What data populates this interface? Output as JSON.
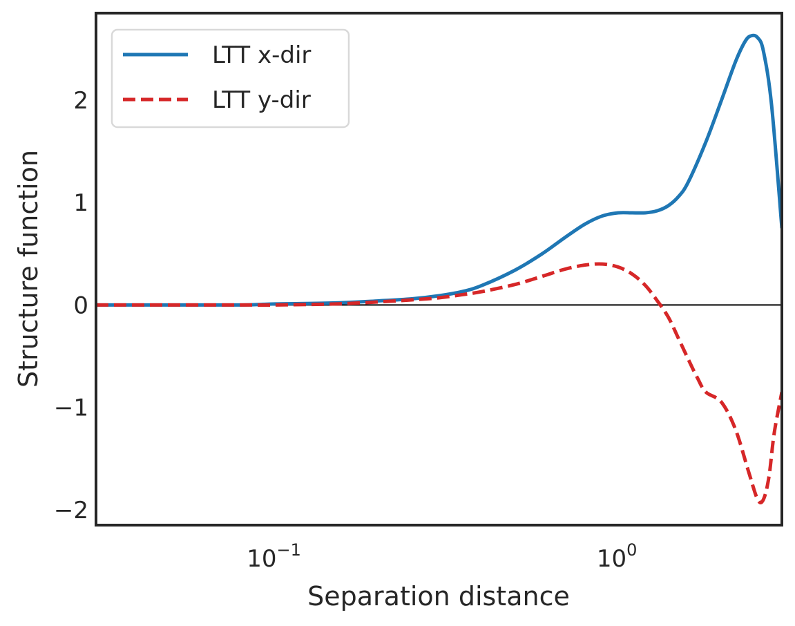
{
  "chart_data": {
    "type": "line",
    "title": "",
    "xlabel": "Separation distance",
    "ylabel": "Structure function",
    "xscale": "log",
    "xlim": [
      0.03,
      3.0
    ],
    "ylim": [
      -2.15,
      2.85
    ],
    "x_ticks": [
      {
        "value": 0.1,
        "base": "10",
        "exp": "−1"
      },
      {
        "value": 1.0,
        "base": "10",
        "exp": "0"
      }
    ],
    "y_ticks": [
      {
        "value": -2,
        "label": "−2"
      },
      {
        "value": -1,
        "label": "−1"
      },
      {
        "value": 0,
        "label": "0"
      },
      {
        "value": 1,
        "label": "1"
      },
      {
        "value": 2,
        "label": "2"
      }
    ],
    "grid": false,
    "legend_position": "top-left",
    "zero_line": true,
    "series": [
      {
        "name": "LTT x-dir",
        "color": "#1f77b4",
        "style": "solid",
        "x": [
          0.03,
          0.05,
          0.08,
          0.1,
          0.15,
          0.2,
          0.25,
          0.3,
          0.35,
          0.4,
          0.5,
          0.6,
          0.7,
          0.8,
          0.9,
          1.0,
          1.1,
          1.2,
          1.3,
          1.4,
          1.5,
          1.6,
          1.8,
          2.0,
          2.2,
          2.35,
          2.45,
          2.55,
          2.65,
          2.8,
          3.0
        ],
        "y": [
          0.0,
          0.0,
          0.0,
          0.01,
          0.02,
          0.04,
          0.06,
          0.09,
          0.13,
          0.19,
          0.34,
          0.5,
          0.66,
          0.79,
          0.87,
          0.9,
          0.9,
          0.9,
          0.92,
          0.97,
          1.06,
          1.2,
          1.59,
          2.0,
          2.38,
          2.58,
          2.63,
          2.61,
          2.48,
          1.95,
          0.75
        ]
      },
      {
        "name": "LTT y-dir",
        "color": "#d62728",
        "style": "dashed",
        "x": [
          0.03,
          0.05,
          0.08,
          0.1,
          0.15,
          0.2,
          0.25,
          0.3,
          0.35,
          0.4,
          0.5,
          0.6,
          0.7,
          0.8,
          0.9,
          1.0,
          1.1,
          1.2,
          1.3,
          1.4,
          1.5,
          1.6,
          1.7,
          1.8,
          2.0,
          2.2,
          2.4,
          2.55,
          2.65,
          2.75,
          2.85,
          3.0
        ],
        "y": [
          0.0,
          0.0,
          0.0,
          0.0,
          0.01,
          0.03,
          0.05,
          0.07,
          0.1,
          0.13,
          0.2,
          0.28,
          0.35,
          0.39,
          0.4,
          0.37,
          0.3,
          0.19,
          0.04,
          -0.12,
          -0.33,
          -0.53,
          -0.71,
          -0.85,
          -0.95,
          -1.22,
          -1.63,
          -1.9,
          -1.9,
          -1.68,
          -1.25,
          -0.85
        ]
      }
    ]
  }
}
